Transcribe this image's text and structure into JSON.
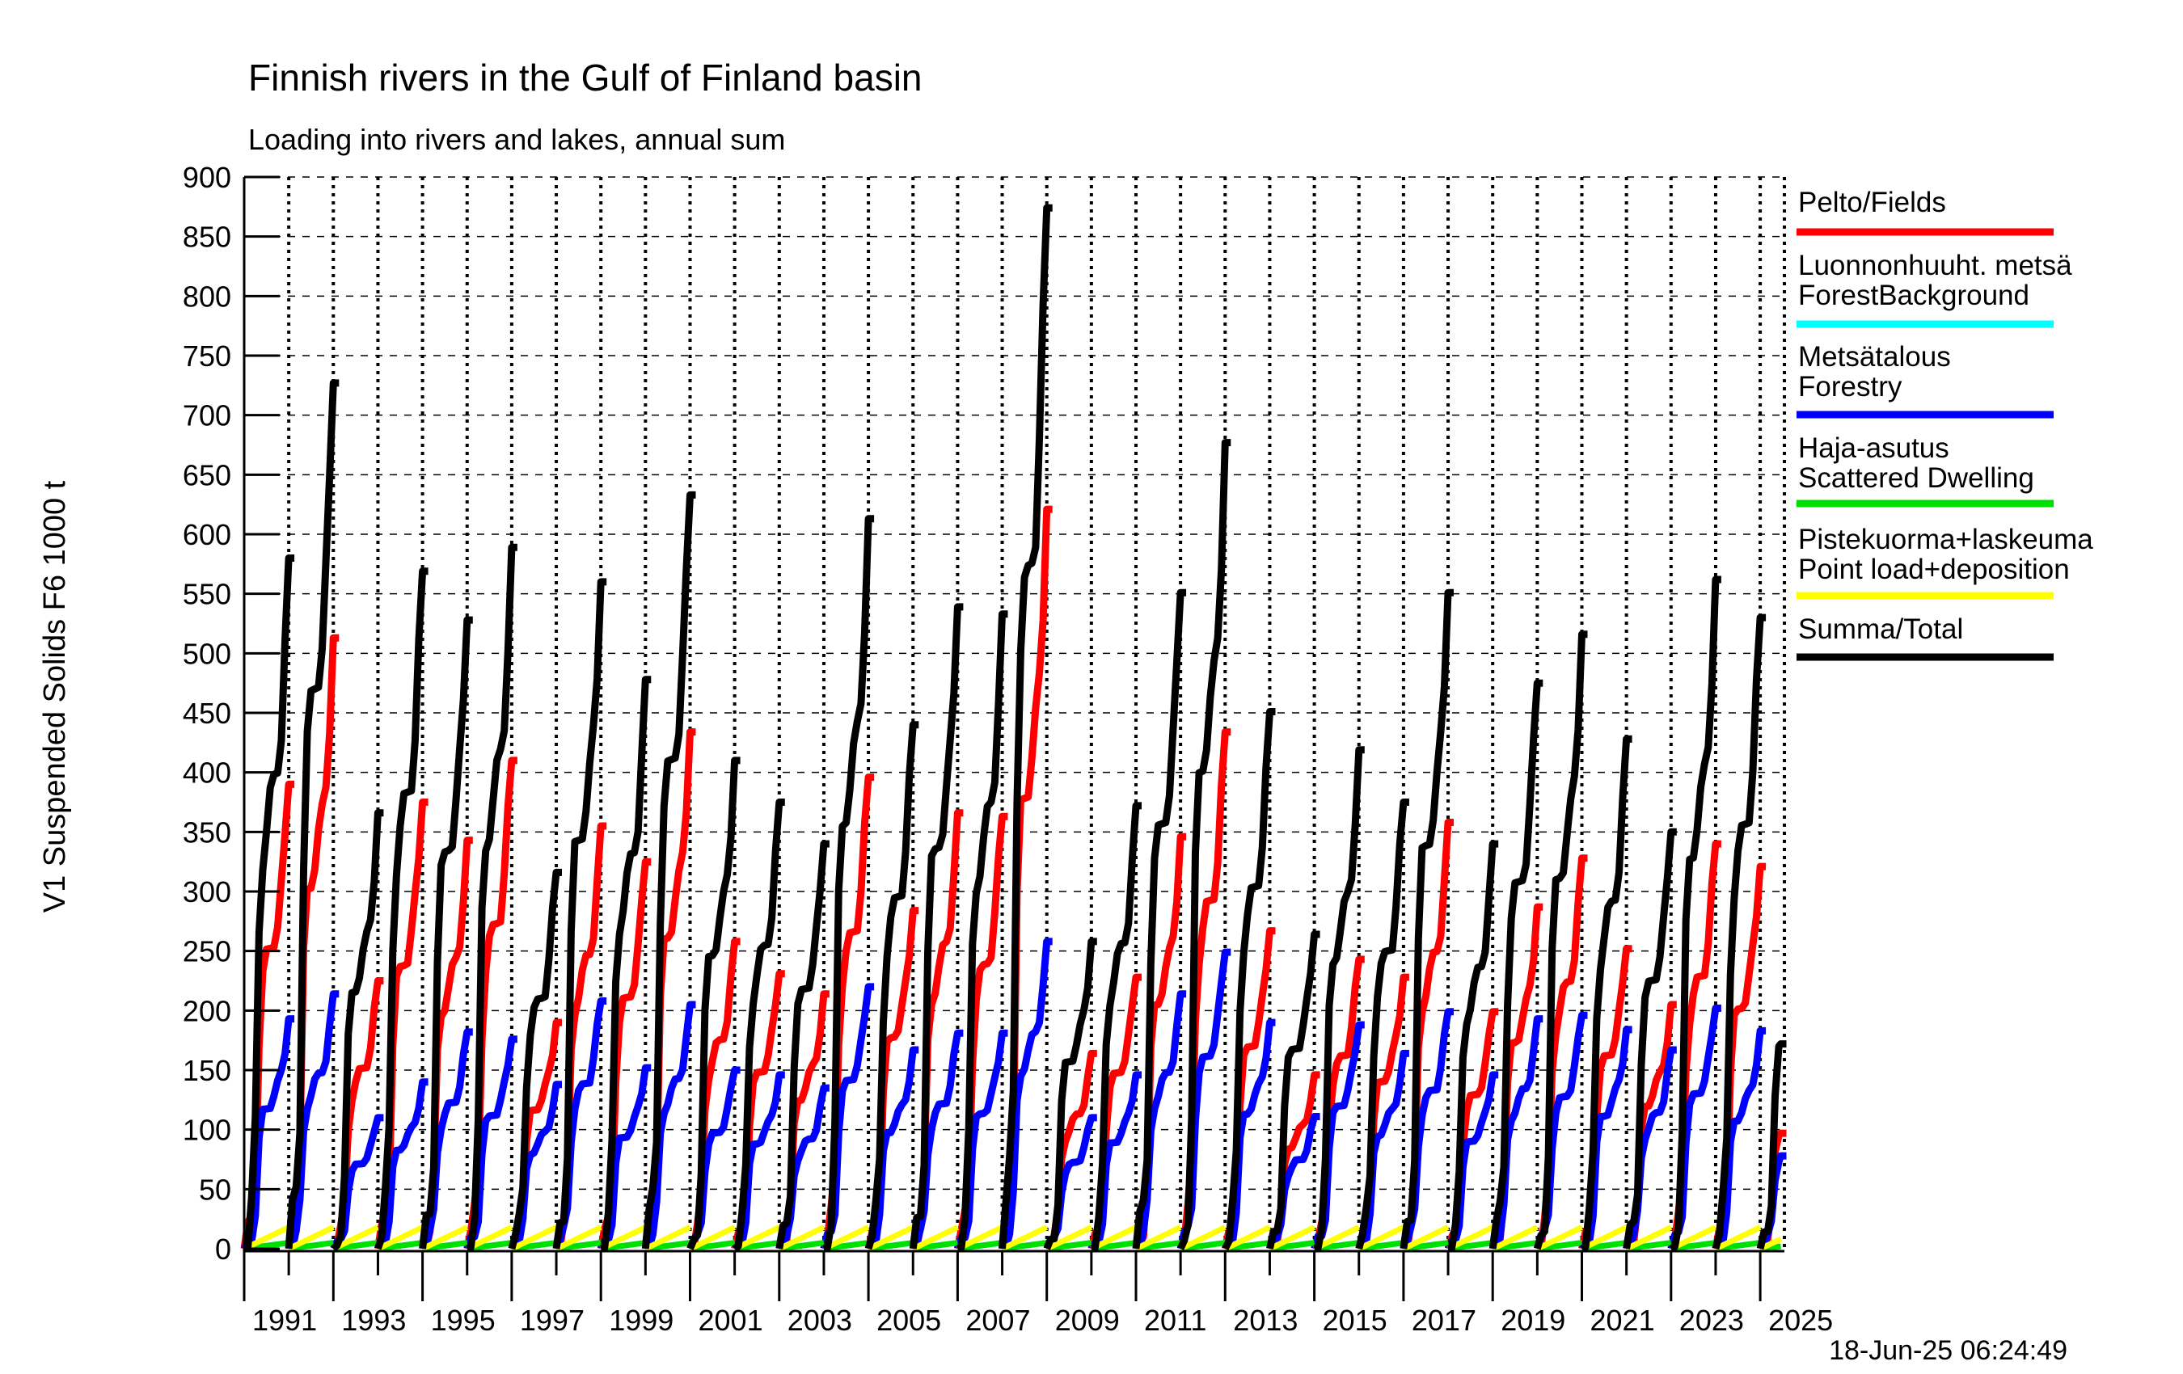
{
  "chart_data": {
    "type": "line",
    "title": "Finnish rivers in the Gulf of Finland basin",
    "subtitle": "Loading into rivers and lakes, annual sum",
    "ylabel": "V1 Suspended Solids F6 1000 t",
    "timestamp": "18-Jun-25 06:24:49",
    "ylim": [
      0,
      900
    ],
    "ytick_step": 50,
    "grid": true,
    "legend_position": "right-outside",
    "annual_cumulative_reset": true,
    "x_axis": {
      "start_year": 1991,
      "end_year": 2025,
      "tick_labels": [
        "1991",
        "1993",
        "1995",
        "1997",
        "1999",
        "2001",
        "2003",
        "2005",
        "2007",
        "2009",
        "2011",
        "2013",
        "2015",
        "2017",
        "2019",
        "2021",
        "2023",
        "2025"
      ],
      "final_year_partial_fraction": 0.46
    },
    "categories": [
      1991,
      1992,
      1993,
      1994,
      1995,
      1996,
      1997,
      1998,
      1999,
      2000,
      2001,
      2002,
      2003,
      2004,
      2005,
      2006,
      2007,
      2008,
      2009,
      2010,
      2011,
      2012,
      2013,
      2014,
      2015,
      2016,
      2017,
      2018,
      2019,
      2020,
      2021,
      2022,
      2023,
      2024,
      2025
    ],
    "series": [
      {
        "key": "fields",
        "name": "Pelto/Fields",
        "color": "#ff0000",
        "kind": "cumulative",
        "values": [
          390,
          513,
          225,
          375,
          343,
          410,
          190,
          355,
          325,
          434,
          258,
          231,
          214,
          396,
          284,
          366,
          363,
          621,
          164,
          228,
          346,
          434,
          267,
          146,
          243,
          228,
          358,
          199,
          287,
          328,
          252,
          205,
          340,
          321,
          97
        ]
      },
      {
        "key": "forest_background",
        "name": "Luonnonhuuht. metsä / ForestBackground",
        "color": "#00ffff",
        "kind": "linear",
        "values": [
          5,
          5,
          5,
          5,
          5,
          5,
          5,
          5,
          5,
          5,
          5,
          5,
          5,
          5,
          5,
          5,
          5,
          5,
          5,
          5,
          5,
          5,
          5,
          5,
          5,
          5,
          5,
          5,
          5,
          5,
          5,
          5,
          5,
          5,
          2
        ]
      },
      {
        "key": "forestry",
        "name": "Metsätalous / Forestry",
        "color": "#0000ff",
        "kind": "cumulative",
        "values": [
          193,
          214,
          110,
          140,
          182,
          176,
          138,
          208,
          152,
          205,
          150,
          146,
          135,
          220,
          167,
          181,
          181,
          258,
          110,
          146,
          214,
          249,
          190,
          111,
          188,
          164,
          199,
          146,
          193,
          196,
          184,
          167,
          202,
          183,
          78
        ]
      },
      {
        "key": "scattered_dwelling",
        "name": "Haja-asutus / Scattered Dwelling",
        "color": "#00e000",
        "kind": "linear",
        "values": [
          5,
          5,
          5,
          5,
          5,
          5,
          5,
          5,
          5,
          5,
          5,
          5,
          5,
          5,
          5,
          5,
          5,
          5,
          5,
          5,
          5,
          5,
          5,
          5,
          5,
          5,
          5,
          5,
          5,
          5,
          5,
          5,
          5,
          5,
          2
        ]
      },
      {
        "key": "point_load",
        "name": "Pistekuorma+laskeuma / Point load+deposition",
        "color": "#ffff00",
        "kind": "linear",
        "values": [
          18,
          18,
          18,
          18,
          18,
          18,
          18,
          18,
          18,
          18,
          18,
          18,
          18,
          18,
          18,
          18,
          18,
          18,
          18,
          18,
          18,
          18,
          18,
          18,
          18,
          18,
          18,
          18,
          18,
          18,
          18,
          18,
          18,
          18,
          8
        ]
      },
      {
        "key": "total",
        "name": "Summa/Total",
        "color": "#000000",
        "kind": "cumulative",
        "values": [
          580,
          727,
          366,
          569,
          528,
          589,
          316,
          560,
          478,
          633,
          410,
          375,
          340,
          613,
          440,
          539,
          533,
          874,
          258,
          372,
          551,
          677,
          451,
          264,
          419,
          375,
          551,
          340,
          475,
          516,
          428,
          350,
          562,
          530,
          172
        ]
      }
    ],
    "monthly_cumulative_profile": [
      0,
      0.025,
      0.06,
      0.16,
      0.46,
      0.58,
      0.615,
      0.64,
      0.665,
      0.7,
      0.765,
      0.875,
      1.0
    ],
    "legend": [
      {
        "lines": [
          "Pelto/Fields"
        ],
        "color": "#ff0000"
      },
      {
        "lines": [
          "Luonnonhuuht. metsä",
          "ForestBackground"
        ],
        "color": "#00ffff"
      },
      {
        "lines": [
          "Metsätalous",
          "Forestry"
        ],
        "color": "#0000ff"
      },
      {
        "lines": [
          "Haja-asutus",
          "Scattered Dwelling"
        ],
        "color": "#00e000"
      },
      {
        "lines": [
          "Pistekuorma+laskeuma",
          "Point load+deposition"
        ],
        "color": "#ffff00"
      },
      {
        "lines": [
          "Summa/Total"
        ],
        "color": "#000000"
      }
    ]
  }
}
